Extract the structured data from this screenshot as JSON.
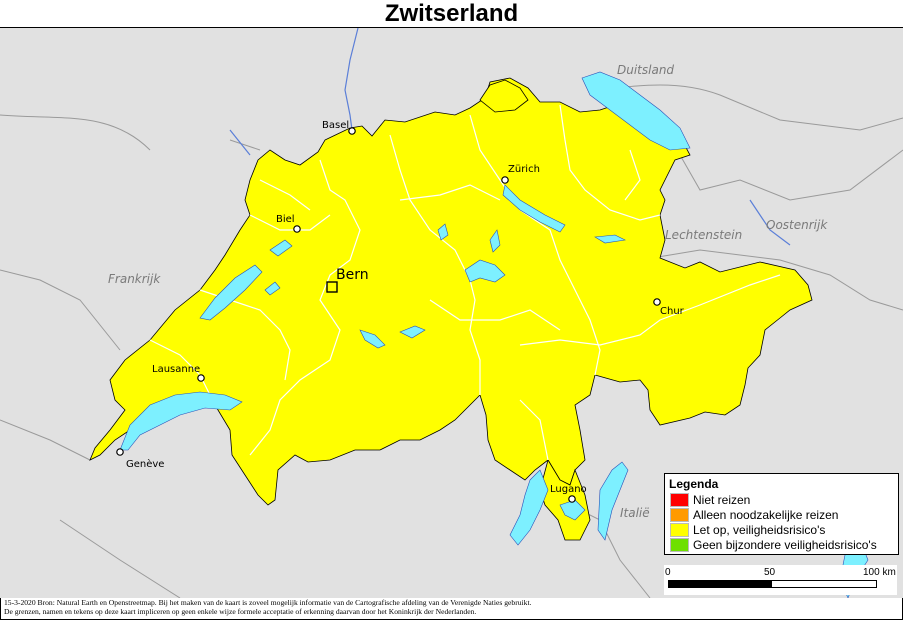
{
  "title": "Zwitserland",
  "neighbours": {
    "germany": "Duitsland",
    "france": "Frankrijk",
    "austria": "Oostenrijk",
    "liechtenstein": "Lechtenstein",
    "italy": "Italië"
  },
  "capital": "Bern",
  "cities": {
    "basel": "Basel",
    "zurich": "Zürich",
    "biel": "Biel",
    "chur": "Chur",
    "lausanne": "Lausanne",
    "geneve": "Genève",
    "lugano": "Lugano"
  },
  "legend": {
    "title": "Legenda",
    "items": [
      {
        "label": "Niet reizen",
        "color": "#ff0000"
      },
      {
        "label": "Alleen noodzakelijke reizen",
        "color": "#ff9a00"
      },
      {
        "label": "Let op, veiligheidsrisico's",
        "color": "#ffff00"
      },
      {
        "label": "Geen bijzondere veiligheidsrisico's",
        "color": "#6ee000"
      }
    ]
  },
  "scale": {
    "start": "0",
    "mid": "50",
    "end": "100 km"
  },
  "colors": {
    "country_fill": "#ffff00",
    "water": "#7df0ff",
    "background_land": "#e1e1e1"
  },
  "footer": {
    "line1": "15-3-2020 Bron: Natural Earth en Openstreetmap. Bij het maken van de kaart is zoveel mogelijk informatie van de Cartografische afdeling van de Verenigde Naties gebruikt.",
    "line2": "De grenzen, namen en tekens op deze kaart impliceren op geen enkele wijze formele acceptatie of erkenning daarvan door het Koninkrijk der Nederlanden."
  }
}
